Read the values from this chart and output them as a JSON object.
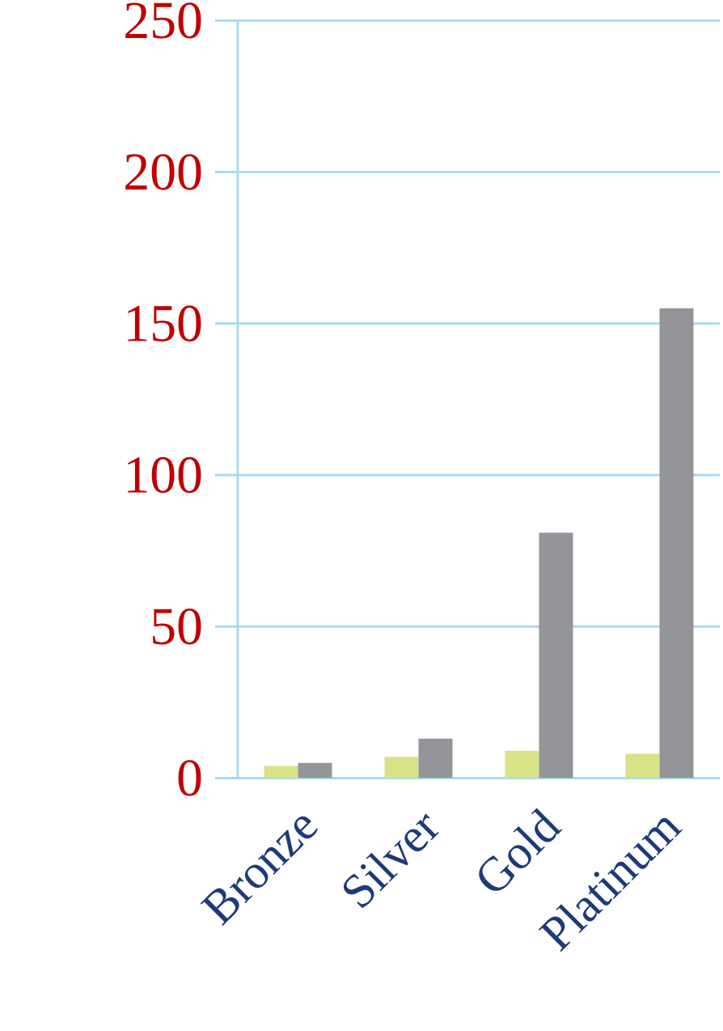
{
  "chart_data": {
    "type": "bar",
    "categories": [
      "Bronze",
      "Silver",
      "Gold",
      "Platinum"
    ],
    "series": [
      {
        "color": "#d9e287",
        "values": [
          4,
          7,
          9,
          8
        ]
      },
      {
        "color": "#939598",
        "values": [
          5,
          13,
          81,
          155
        ]
      }
    ],
    "ylim": [
      0,
      250
    ],
    "yticks": [
      0,
      50,
      100,
      150,
      200,
      250
    ],
    "grid": "y"
  }
}
